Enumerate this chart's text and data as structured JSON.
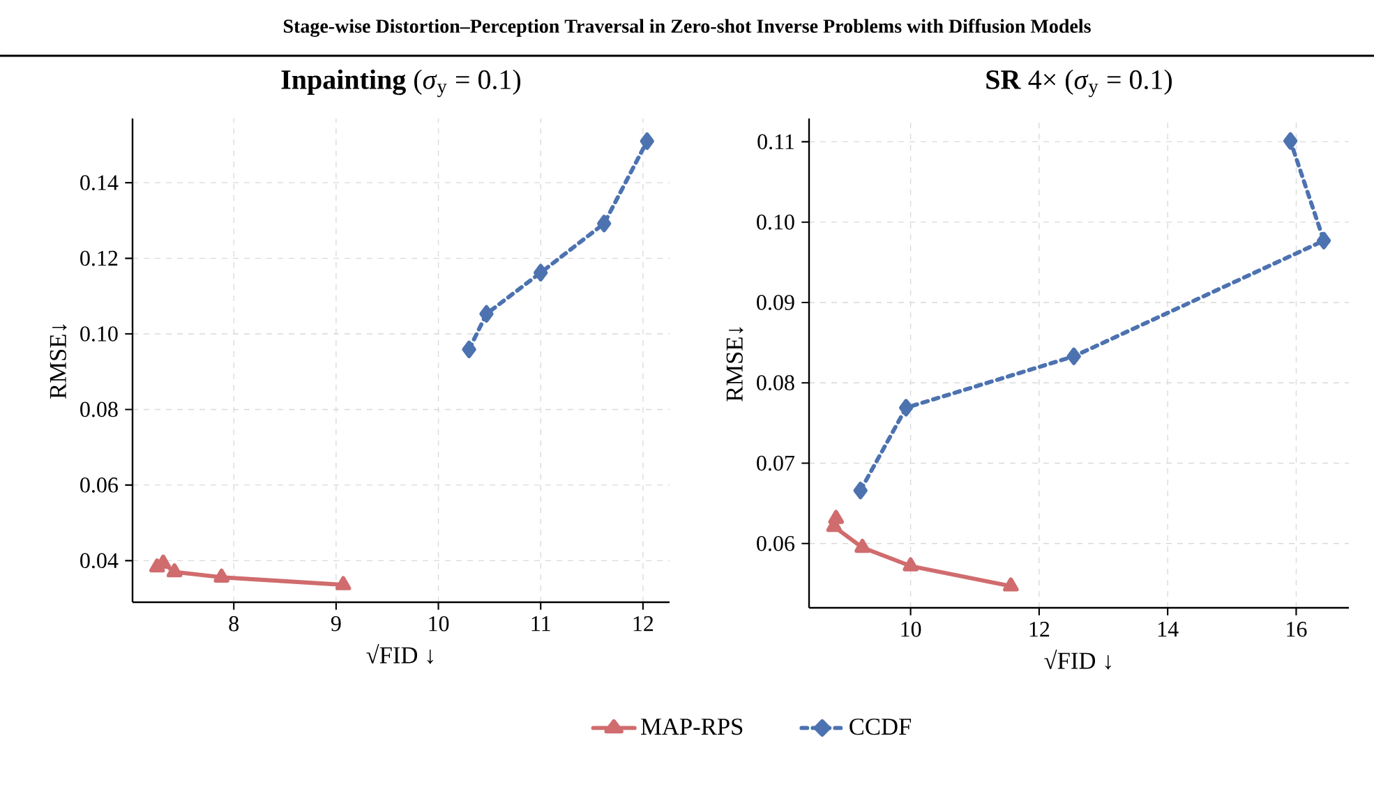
{
  "chart_data": [
    {
      "type": "other",
      "title": "**Stage-wise Distortion–Perception Traversal in Zero-shot Inverse Problems with Diffusion Models**"
    },
    {
      "type": "line",
      "title": "**Inpainting** (*σ*$_{y}$ = 0.1)",
      "xlabel": "√FID ↓",
      "ylabel": "RMSE↓",
      "xlim": [
        7.01,
        12.26
      ],
      "ylim": [
        0.029,
        0.157
      ],
      "xticks": [
        8,
        9,
        10,
        11,
        12
      ],
      "yticks": [
        {
          "value": 0.04,
          "label": "0.04"
        },
        {
          "value": 0.06,
          "label": "0.06"
        },
        {
          "value": 0.08,
          "label": "0.08"
        },
        {
          "value": 0.1,
          "label": "0.10"
        },
        {
          "value": 0.12,
          "label": "0.12"
        },
        {
          "value": 0.14,
          "label": "0.14"
        }
      ],
      "grid": true,
      "legend": "bottom",
      "series": [
        {
          "name": "MAP-RPS",
          "color": "#d06c6e",
          "marker": "triangle",
          "line_style": "solid",
          "x": [
            7.25,
            7.31,
            7.42,
            7.88,
            9.07
          ],
          "values": [
            0.0383,
            0.0393,
            0.037,
            0.0356,
            0.0336
          ]
        },
        {
          "name": "CCDF",
          "color": "#4c72b0",
          "marker": "diamond",
          "line_style": "dashed",
          "x": [
            10.3,
            10.47,
            11.0,
            11.62,
            12.04
          ],
          "values": [
            0.0959,
            0.1053,
            0.1162,
            0.1292,
            0.151
          ]
        }
      ]
    },
    {
      "type": "line",
      "title": "**SR** 4× (*σ*$_{y}$ = 0.1)",
      "xlabel": "√FID ↓",
      "ylabel": "RMSE↓",
      "xlim": [
        8.42,
        16.82
      ],
      "ylim": [
        0.052,
        0.1129
      ],
      "xticks": [
        10,
        12,
        14,
        16
      ],
      "yticks": [
        {
          "value": 0.06,
          "label": "0.06"
        },
        {
          "value": 0.07,
          "label": "0.07"
        },
        {
          "value": 0.08,
          "label": "0.08"
        },
        {
          "value": 0.09,
          "label": "0.09"
        },
        {
          "value": 0.1,
          "label": "0.10"
        },
        {
          "value": 0.11,
          "label": "0.11"
        }
      ],
      "grid": true,
      "series": [
        {
          "color": "#d06c6e",
          "marker": "triangle",
          "line_style": "solid",
          "x": [
            8.84,
            8.81,
            9.25,
            10.0,
            11.56
          ],
          "values": [
            0.0631,
            0.0621,
            0.0595,
            0.0572,
            0.0547
          ]
        },
        {
          "color": "#4c72b0",
          "marker": "diamond",
          "line_style": "dashed",
          "x": [
            9.22,
            9.93,
            12.54,
            16.43,
            15.91
          ],
          "values": [
            0.0666,
            0.0769,
            0.0833,
            0.0977,
            0.1101
          ]
        }
      ]
    }
  ]
}
